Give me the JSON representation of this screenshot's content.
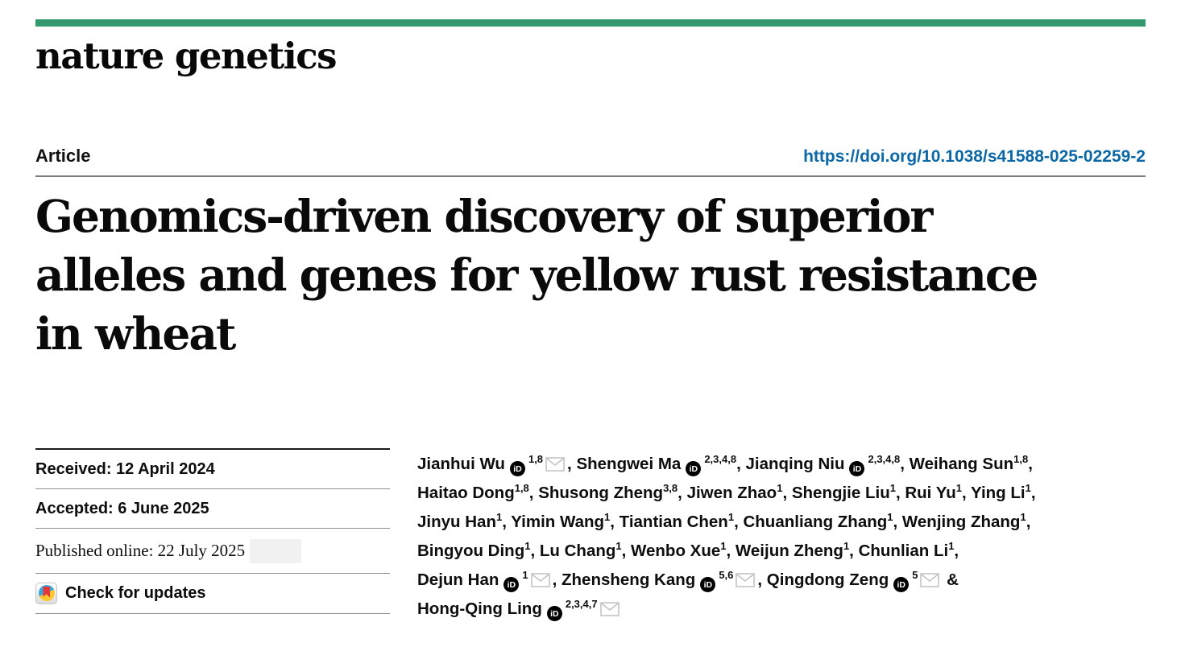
{
  "brand": {
    "bar_color": "#34996e",
    "logo_text": "nature genetics"
  },
  "article_header": {
    "label": "Article",
    "doi_link": "https://doi.org/10.1038/s41588-025-02259-2",
    "doi_color": "#0b67a6"
  },
  "title_lines": [
    "Genomics-driven discovery of superior",
    "alleles and genes for yellow rust resistance",
    "in wheat"
  ],
  "metadata": {
    "received": "Received: 12 April 2024",
    "accepted": "Accepted: 6 June 2025",
    "published_online": "Published online: 22 July 2025",
    "check_for_updates_label": "Check for updates"
  },
  "icon_colors": {
    "crossmark_blue": "#35a8dc",
    "crossmark_yellow": "#fdc82f",
    "crossmark_red": "#e4373c",
    "orcid_badge": "#000000",
    "envelope_stroke": "#c4c4c4"
  },
  "authors": {
    "lines": [
      [
        {
          "name": "Jianhui Wu",
          "orcid": true,
          "sup": "1,8",
          "email": true,
          "after": ", "
        },
        {
          "name": "Shengwei Ma",
          "orcid": true,
          "sup": "2,3,4,8",
          "email": false,
          "after": ", "
        },
        {
          "name": "Jianqing Niu",
          "orcid": true,
          "sup": "2,3,4,8",
          "email": false,
          "after": ", "
        },
        {
          "name": "Weihang Sun",
          "orcid": false,
          "sup": "1,8",
          "email": false,
          "after": ","
        }
      ],
      [
        {
          "name": "Haitao Dong",
          "orcid": false,
          "sup": "1,8",
          "email": false,
          "after": ", "
        },
        {
          "name": "Shusong Zheng",
          "orcid": false,
          "sup": "3,8",
          "email": false,
          "after": ", "
        },
        {
          "name": "Jiwen Zhao",
          "orcid": false,
          "sup": "1",
          "email": false,
          "after": ", "
        },
        {
          "name": "Shengjie Liu",
          "orcid": false,
          "sup": "1",
          "email": false,
          "after": ", "
        },
        {
          "name": "Rui Yu",
          "orcid": false,
          "sup": "1",
          "email": false,
          "after": ", "
        },
        {
          "name": "Ying Li",
          "orcid": false,
          "sup": "1",
          "email": false,
          "after": ","
        }
      ],
      [
        {
          "name": "Jinyu Han",
          "orcid": false,
          "sup": "1",
          "email": false,
          "after": ", "
        },
        {
          "name": "Yimin Wang",
          "orcid": false,
          "sup": "1",
          "email": false,
          "after": ", "
        },
        {
          "name": "Tiantian Chen",
          "orcid": false,
          "sup": "1",
          "email": false,
          "after": ", "
        },
        {
          "name": "Chuanliang Zhang",
          "orcid": false,
          "sup": "1",
          "email": false,
          "after": ", "
        },
        {
          "name": "Wenjing Zhang",
          "orcid": false,
          "sup": "1",
          "email": false,
          "after": ","
        }
      ],
      [
        {
          "name": "Bingyou Ding",
          "orcid": false,
          "sup": "1",
          "email": false,
          "after": ", "
        },
        {
          "name": "Lu Chang",
          "orcid": false,
          "sup": "1",
          "email": false,
          "after": ", "
        },
        {
          "name": "Wenbo Xue",
          "orcid": false,
          "sup": "1",
          "email": false,
          "after": ", "
        },
        {
          "name": "Weijun Zheng",
          "orcid": false,
          "sup": "1",
          "email": false,
          "after": ", "
        },
        {
          "name": "Chunlian Li",
          "orcid": false,
          "sup": "1",
          "email": false,
          "after": ","
        }
      ],
      [
        {
          "name": "Dejun Han",
          "orcid": true,
          "sup": "1",
          "email": true,
          "after": ", "
        },
        {
          "name": "Zhensheng Kang",
          "orcid": true,
          "sup": "5,6",
          "email": true,
          "after": ", "
        },
        {
          "name": "Qingdong Zeng",
          "orcid": true,
          "sup": "5",
          "email": true,
          "after": " &"
        }
      ],
      [
        {
          "name": "Hong-Qing Ling",
          "orcid": true,
          "sup": "2,3,4,7",
          "email": true,
          "after": ""
        }
      ]
    ]
  }
}
